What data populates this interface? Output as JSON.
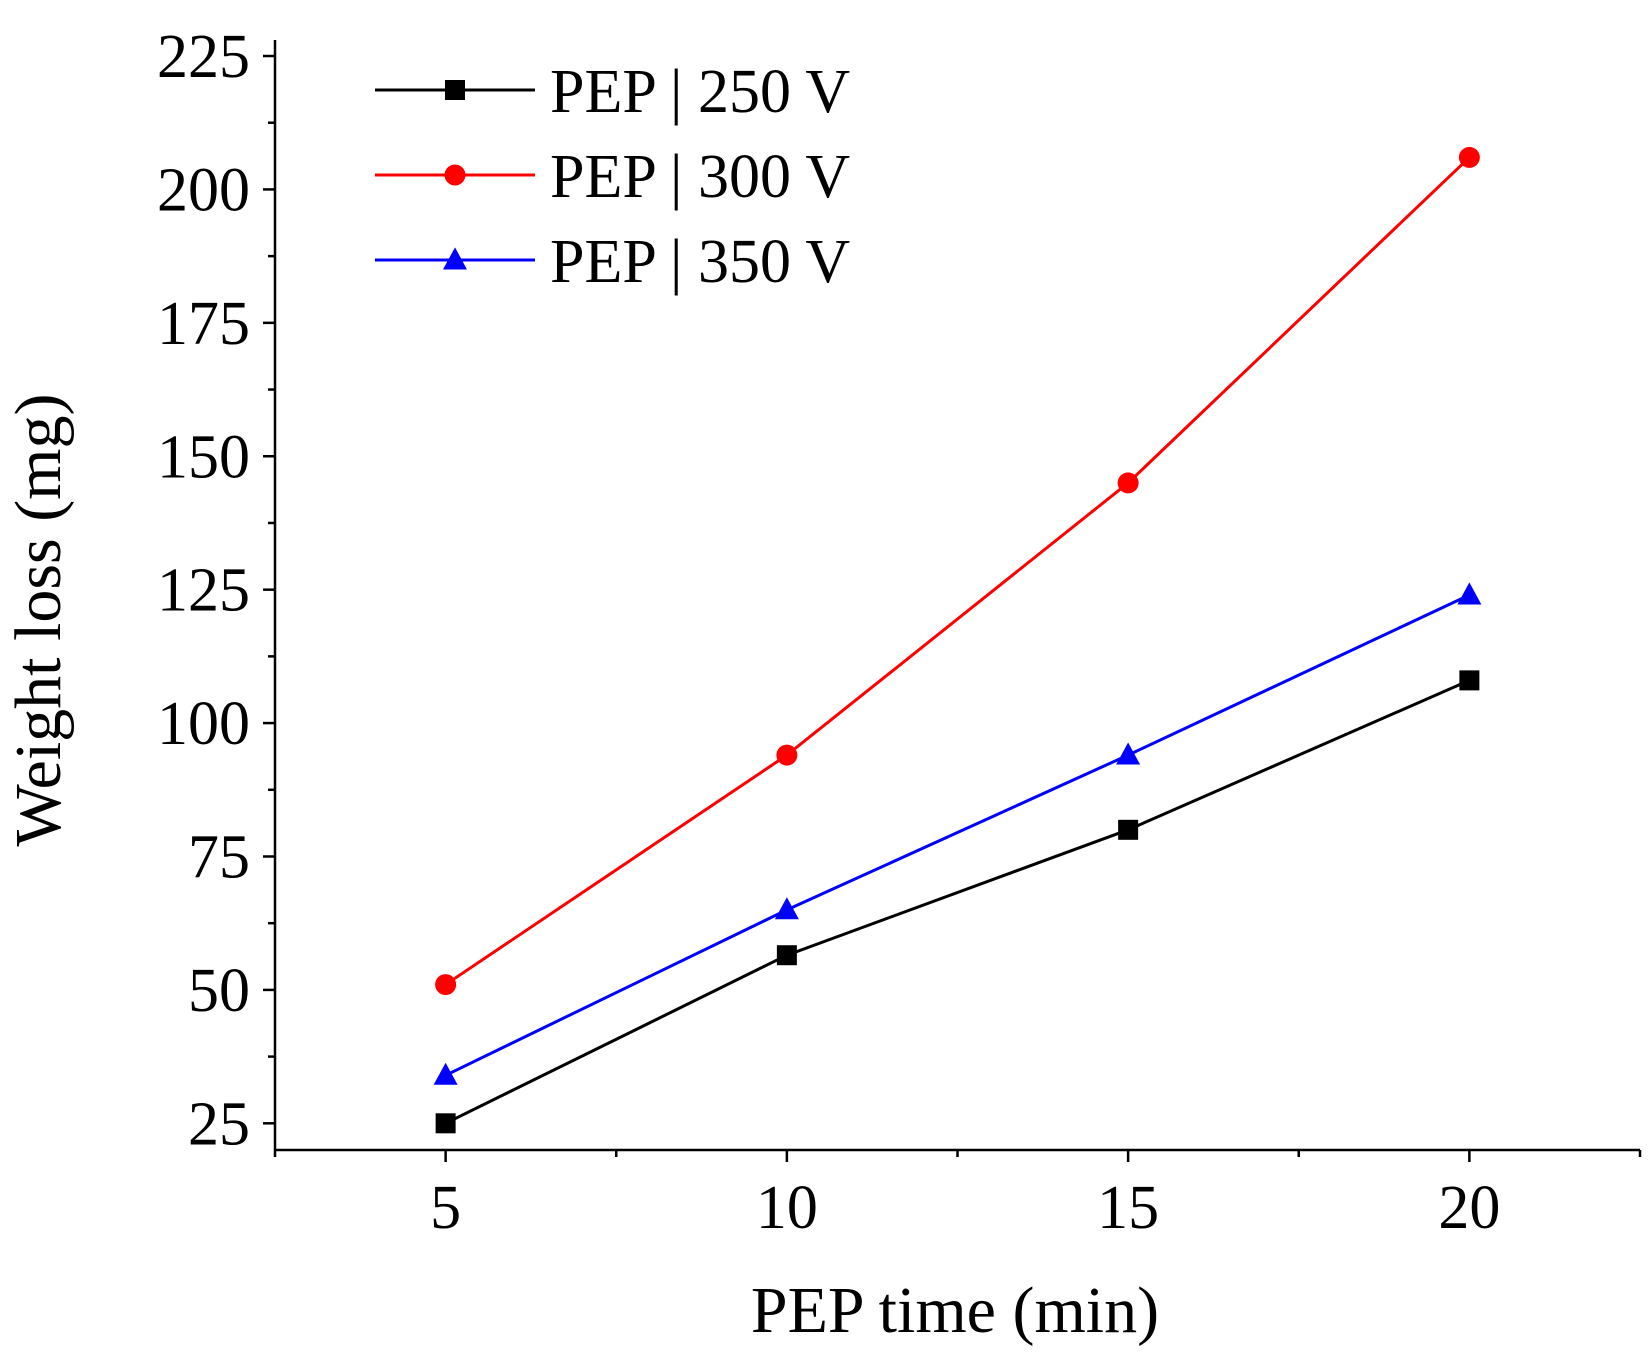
{
  "chart_data": {
    "type": "line",
    "title": "",
    "xlabel": "PEP time (min)",
    "ylabel": "Weight loss (mg)",
    "x": [
      5,
      10,
      15,
      20
    ],
    "xlim": [
      2.5,
      22.5
    ],
    "ylim": [
      20,
      228
    ],
    "xticks": [
      5,
      10,
      15,
      20
    ],
    "xtick_labels": [
      "5",
      "10",
      "15",
      "20"
    ],
    "yticks": [
      25,
      50,
      75,
      100,
      125,
      150,
      175,
      200,
      225
    ],
    "ytick_labels": [
      "25",
      "50",
      "75",
      "100",
      "125",
      "150",
      "175",
      "200",
      "225"
    ],
    "grid": false,
    "legend_position": "top-left",
    "series": [
      {
        "name": "PEP | 250 V",
        "color": "#000000",
        "marker": "square",
        "values": [
          25,
          56.5,
          80,
          108
        ]
      },
      {
        "name": "PEP | 300 V",
        "color": "#ff0000",
        "marker": "circle",
        "values": [
          51,
          94,
          145,
          206
        ]
      },
      {
        "name": "PEP | 350 V",
        "color": "#0000ff",
        "marker": "triangle",
        "values": [
          34,
          65,
          94,
          124
        ]
      }
    ]
  }
}
